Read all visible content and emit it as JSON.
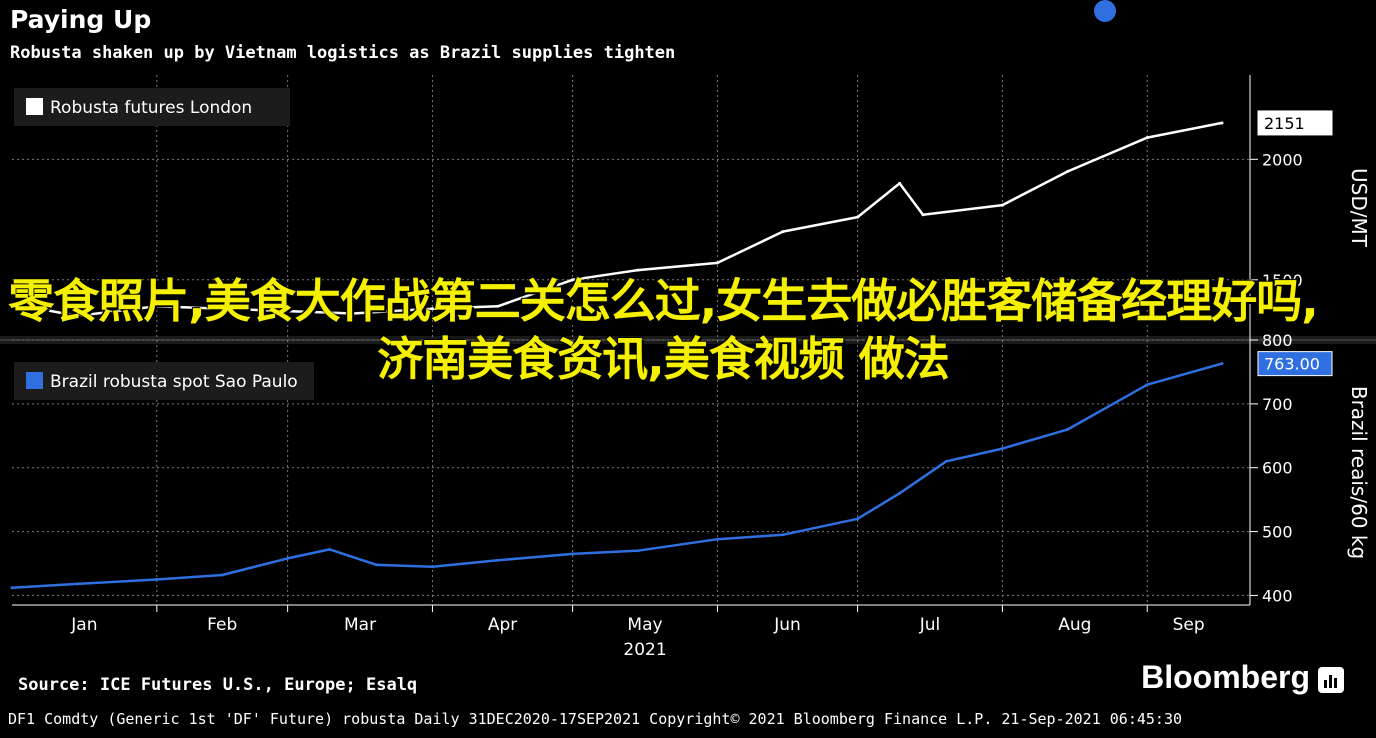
{
  "header": {
    "title": "Paying Up",
    "subtitle": "Robusta shaken up by Vietnam logistics as Brazil supplies tighten"
  },
  "overlay_text": "零食照片,美食大作战第二关怎么过,女生去做必胜客储备经理好吗,济南美食资讯,美食视频 做法",
  "source": "Source: ICE Futures U.S., Europe; Esalq",
  "brand": "Bloomberg",
  "footer": "DF1 Comdty (Generic 1st 'DF' Future) robusta  Daily 31DEC2020-17SEP2021  Copyright© 2021 Bloomberg Finance L.P.  21-Sep-2021 06:45:30",
  "colors": {
    "top_line": "#ffffff",
    "bottom_line": "#2f6fe0",
    "background": "#000000",
    "grid": "#7a7a7a",
    "overlay": "#f5f000"
  },
  "chart_data": [
    {
      "type": "line",
      "legend": "Robusta futures London",
      "ylabel": "USD/MT",
      "ylim": [
        1250,
        2350
      ],
      "yticks": [
        "1500",
        "2000"
      ],
      "last_value_label": "2151",
      "x": [
        "2021-01-01",
        "2021-01-15",
        "2021-02-01",
        "2021-02-15",
        "2021-03-01",
        "2021-03-15",
        "2021-04-01",
        "2021-04-15",
        "2021-05-01",
        "2021-05-15",
        "2021-06-01",
        "2021-06-15",
        "2021-07-01",
        "2021-07-10",
        "2021-07-15",
        "2021-08-01",
        "2021-08-15",
        "2021-09-01",
        "2021-09-17"
      ],
      "values": [
        1400,
        1350,
        1390,
        1380,
        1370,
        1360,
        1380,
        1390,
        1500,
        1540,
        1570,
        1700,
        1760,
        1900,
        1770,
        1810,
        1950,
        2090,
        2151
      ]
    },
    {
      "type": "line",
      "legend": "Brazil robusta spot Sao Paulo",
      "ylabel": "Brazil reais/60 kg",
      "ylim": [
        385,
        800
      ],
      "yticks": [
        "400",
        "500",
        "600",
        "700",
        "800"
      ],
      "last_value_label": "763.00",
      "x": [
        "2021-01-01",
        "2021-01-15",
        "2021-02-01",
        "2021-02-15",
        "2021-03-01",
        "2021-03-10",
        "2021-03-20",
        "2021-04-01",
        "2021-04-15",
        "2021-05-01",
        "2021-05-15",
        "2021-06-01",
        "2021-06-15",
        "2021-07-01",
        "2021-07-10",
        "2021-07-20",
        "2021-08-01",
        "2021-08-15",
        "2021-09-01",
        "2021-09-17"
      ],
      "values": [
        412,
        418,
        425,
        432,
        458,
        472,
        448,
        445,
        455,
        465,
        470,
        488,
        495,
        520,
        560,
        610,
        630,
        660,
        730,
        763
      ]
    }
  ],
  "x_axis": {
    "months": [
      "Jan",
      "Feb",
      "Mar",
      "Apr",
      "May",
      "Jun",
      "Jul",
      "Aug",
      "Sep"
    ],
    "year": "2021"
  }
}
